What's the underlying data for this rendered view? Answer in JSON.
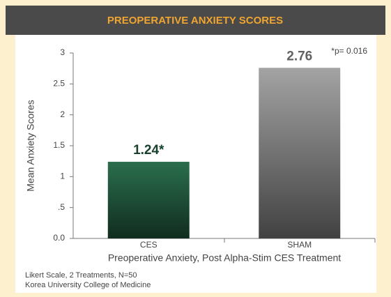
{
  "chart_data": {
    "type": "bar",
    "title": "PREOPERATIVE ANXIETY SCORES",
    "annotation": "*p= 0.016",
    "ylabel": "Mean Anxiety Scores",
    "xlabel": "Preoperative Anxiety, Post Alpha-Stim CES Treatment",
    "notes": [
      "Likert Scale, 2 Treatments, N=50",
      "Korea University College of Medicine"
    ],
    "categories": [
      "CES",
      "SHAM"
    ],
    "values": [
      1.24,
      2.76
    ],
    "value_labels": [
      "1.24*",
      "2.76"
    ],
    "colors": [
      "#2a6e4d",
      "#a3a3a3"
    ],
    "ylim": [
      0,
      3
    ],
    "yticks": [
      {
        "value": 0,
        "label": "0.0"
      },
      {
        "value": 0.5,
        "label": ".5"
      },
      1,
      1.5,
      2,
      2.5,
      3
    ]
  }
}
